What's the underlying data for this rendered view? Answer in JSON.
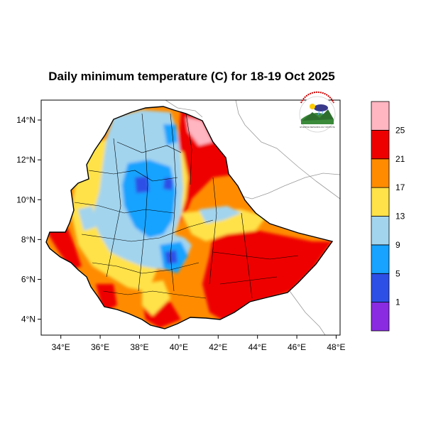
{
  "title": "Daily minimum temperature (C) for 18-19 Oct 2025",
  "x_axis": {
    "min": 33,
    "max": 48.2,
    "ticks": [
      {
        "value": 34,
        "label": "34°E"
      },
      {
        "value": 36,
        "label": "36°E"
      },
      {
        "value": 38,
        "label": "38°E"
      },
      {
        "value": 40,
        "label": "40°E"
      },
      {
        "value": 42,
        "label": "42°E"
      },
      {
        "value": 44,
        "label": "44°E"
      },
      {
        "value": 46,
        "label": "46°E"
      },
      {
        "value": 48,
        "label": "48°E"
      }
    ]
  },
  "y_axis": {
    "min": 3.2,
    "max": 15,
    "ticks": [
      {
        "value": 4,
        "label": "4°N"
      },
      {
        "value": 6,
        "label": "6°N"
      },
      {
        "value": 8,
        "label": "8°N"
      },
      {
        "value": 10,
        "label": "10°N"
      },
      {
        "value": 12,
        "label": "12°N"
      },
      {
        "value": 14,
        "label": "14°N"
      }
    ]
  },
  "legend": {
    "bins": [
      {
        "color": "#8a2be2",
        "label": ""
      },
      {
        "color": "#2e4fe6",
        "label": "1"
      },
      {
        "color": "#17a3ff",
        "label": "5"
      },
      {
        "color": "#a2d4ee",
        "label": "9"
      },
      {
        "color": "#ffe24a",
        "label": "13"
      },
      {
        "color": "#ff8c00",
        "label": "17"
      },
      {
        "color": "#ee0000",
        "label": "21"
      },
      {
        "color": "#ffb6c1",
        "label": "25"
      }
    ]
  },
  "logo": {
    "name": "ethiopian-meteorology-institute-logo",
    "text": "ETHIOPIAN METEOROLOGY INSTITUTE"
  },
  "colors": {
    "sea": "#ffffff",
    "border": "#000000",
    "neighbor_border": "#888888"
  }
}
